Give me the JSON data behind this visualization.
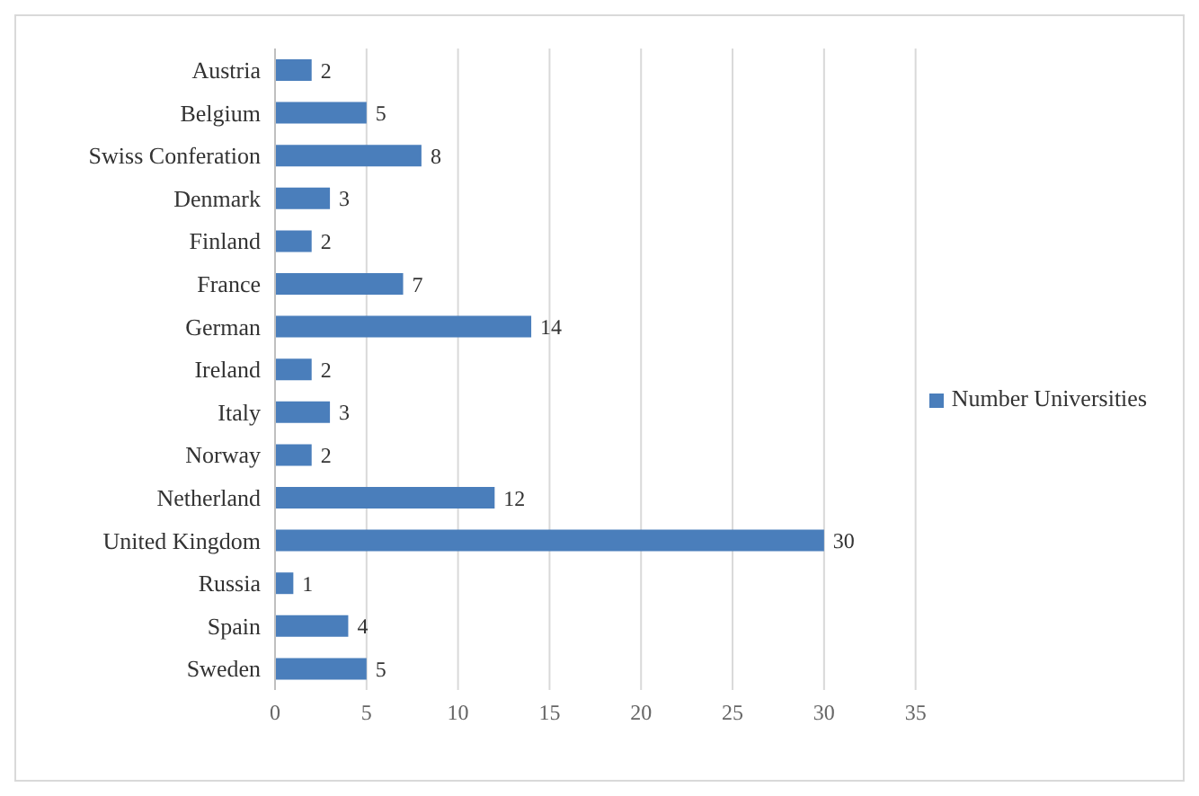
{
  "chart_data": {
    "type": "bar",
    "orientation": "horizontal",
    "categories": [
      "Austria",
      "Belgium",
      "Swiss Conferation",
      "Denmark",
      "Finland",
      "France",
      "German",
      "Ireland",
      "Italy",
      "Norway",
      "Netherland",
      "United Kingdom",
      "Russia",
      "Spain",
      "Sweden"
    ],
    "series": [
      {
        "name": "Number Universities",
        "color": "#4a7ebb",
        "values": [
          2,
          5,
          8,
          3,
          2,
          7,
          14,
          2,
          3,
          2,
          12,
          30,
          1,
          4,
          5
        ]
      }
    ],
    "xlim": [
      0,
      35
    ],
    "xticks": [
      0,
      5,
      10,
      15,
      20,
      25,
      30,
      35
    ],
    "grid": "x",
    "legend": "right",
    "data_labels": true
  }
}
